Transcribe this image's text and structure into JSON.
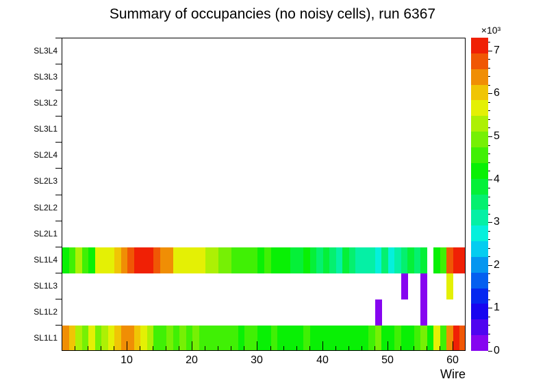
{
  "title": "Summary of occupancies (no noisy cells), run 6367",
  "axes": {
    "x_label": "Wire",
    "x_ticks": [
      "10",
      "20",
      "30",
      "40",
      "50",
      "60"
    ],
    "y_labels": [
      "SL3L4",
      "SL3L3",
      "SL3L2",
      "SL3L1",
      "SL2L4",
      "SL2L3",
      "SL2L2",
      "SL2L1",
      "SL1L4",
      "SL1L3",
      "SL1L2",
      "SL1L1"
    ],
    "z_ticks": [
      "0",
      "1",
      "2",
      "3",
      "4",
      "5",
      "6",
      "7"
    ],
    "z_multiplier": "×10³"
  },
  "chart_data": {
    "type": "heatmap",
    "title": "Summary of occupancies (no noisy cells), run 6367",
    "xlabel": "Wire",
    "x_range": [
      0,
      62
    ],
    "x_tick_values": [
      10,
      20,
      30,
      40,
      50,
      60
    ],
    "rows": [
      "SL3L4",
      "SL3L3",
      "SL3L2",
      "SL3L1",
      "SL2L4",
      "SL2L3",
      "SL2L2",
      "SL2L1",
      "SL1L4",
      "SL1L3",
      "SL1L2",
      "SL1L1"
    ],
    "zlim": [
      0,
      7300
    ],
    "z_axis_tick_values": [
      0,
      1000,
      2000,
      3000,
      4000,
      5000,
      6000,
      7000
    ],
    "z_axis_multiplier": "×10³",
    "palette": "root-rainbow-20-contour-levels",
    "legend_position": "right-color-bar",
    "grid": false,
    "cells": {
      "SL1L4": {
        "start_wire": 1,
        "values": [
          4200,
          4700,
          5200,
          4700,
          4300,
          5600,
          5700,
          5800,
          6100,
          6400,
          6800,
          7100,
          7150,
          7000,
          6700,
          6400,
          6300,
          5800,
          5700,
          5600,
          5750,
          5600,
          5300,
          5200,
          4800,
          5100,
          4700,
          4500,
          4600,
          4400,
          4300,
          4400,
          4200,
          4100,
          4300,
          4000,
          3900,
          4100,
          3800,
          3500,
          3900,
          3400,
          3200,
          3800,
          3500,
          3100,
          3000,
          3200,
          2800,
          3300,
          2900,
          3100,
          3500,
          3800,
          3400,
          3900,
          0,
          4300,
          4400,
          6700,
          7100,
          7000
        ]
      },
      "SL1L3": {
        "sparse": [
          {
            "wire": 53,
            "value": 250
          },
          {
            "wire": 56,
            "value": 250
          },
          {
            "wire": 60,
            "value": 5600
          }
        ]
      },
      "SL1L2": {
        "sparse": [
          {
            "wire": 49,
            "value": 250
          },
          {
            "wire": 56,
            "value": 250
          }
        ]
      },
      "SL1L1": {
        "start_wire": 1,
        "values": [
          6300,
          6000,
          5200,
          4800,
          5600,
          4900,
          5200,
          5500,
          6100,
          6300,
          6350,
          6100,
          5600,
          5200,
          4700,
          4500,
          4800,
          4500,
          4900,
          4600,
          5100,
          4600,
          4500,
          4400,
          4600,
          4500,
          4400,
          4300,
          4500,
          4400,
          4300,
          4200,
          4400,
          4300,
          4200,
          4300,
          4200,
          4400,
          4300,
          4200,
          4300,
          4200,
          4100,
          4300,
          4200,
          4300,
          4200,
          4400,
          4800,
          4300,
          4200,
          4400,
          4300,
          4200,
          4500,
          4800,
          4300,
          5500,
          4600,
          6300,
          7000,
          6900
        ]
      }
    }
  }
}
